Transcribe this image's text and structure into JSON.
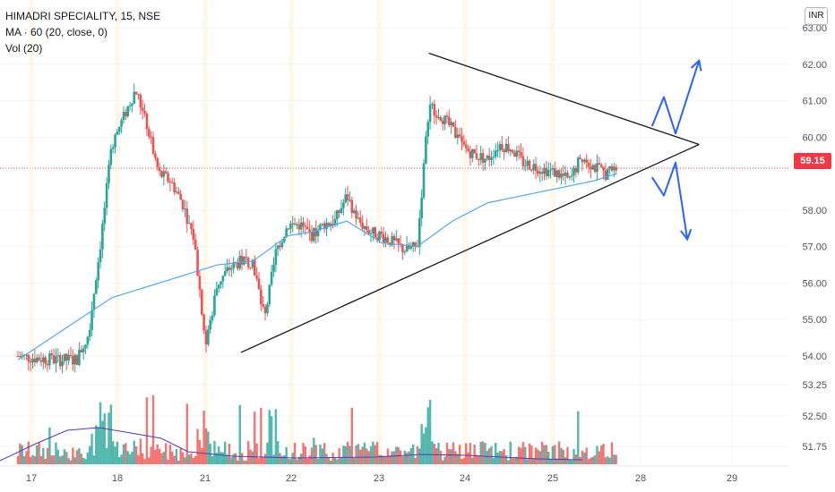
{
  "legend": {
    "symbol": "HIMADRI SPECIALITY, 15, NSE",
    "ma": "MA · 60 (20, close, 0)",
    "vol": "Vol (20)"
  },
  "currency": "INR",
  "last_price": "59.15",
  "colors": {
    "up": "#26a69a",
    "down": "#ef5350",
    "ma": "#4fa9e8",
    "vol_ma": "#5b35b5",
    "trendline": "#131722",
    "arrow": "#2962ff",
    "last_price": "#f23645"
  },
  "chart_data": {
    "type": "candlestick",
    "x_ticks": [
      "17",
      "18",
      "21",
      "22",
      "23",
      "24",
      "25",
      "28",
      "29"
    ],
    "y_ticks": [
      "63.00",
      "62.00",
      "61.00",
      "60.00",
      "58.00",
      "57.00",
      "56.00",
      "55.00",
      "54.00",
      "53.25",
      "52.50",
      "51.75"
    ],
    "last_price": 59.15,
    "price_path": [
      [
        0,
        54.0
      ],
      [
        3,
        53.9
      ],
      [
        5,
        53.9
      ],
      [
        6,
        54.6
      ],
      [
        7,
        57.0
      ],
      [
        8,
        59.8
      ],
      [
        10,
        61.3
      ],
      [
        11,
        60.3
      ],
      [
        12,
        59.0
      ],
      [
        13,
        58.8
      ],
      [
        14,
        58.2
      ],
      [
        15,
        57.2
      ],
      [
        16,
        54.3
      ],
      [
        17,
        56.0
      ],
      [
        18,
        56.4
      ],
      [
        19,
        56.6
      ],
      [
        20,
        56.6
      ],
      [
        21,
        55.0
      ],
      [
        22,
        56.9
      ],
      [
        23,
        57.6
      ],
      [
        24,
        57.6
      ],
      [
        25,
        57.3
      ],
      [
        26,
        57.6
      ],
      [
        27,
        57.7
      ],
      [
        28,
        58.4
      ],
      [
        29,
        57.7
      ],
      [
        30,
        57.4
      ],
      [
        31,
        57.3
      ],
      [
        32,
        57.1
      ],
      [
        33,
        56.9
      ],
      [
        34,
        57.0
      ],
      [
        35,
        60.9
      ],
      [
        36,
        60.6
      ],
      [
        37,
        60.2
      ],
      [
        38,
        59.7
      ],
      [
        39,
        59.5
      ],
      [
        40,
        59.4
      ],
      [
        41,
        59.8
      ],
      [
        42,
        59.7
      ],
      [
        43,
        59.3
      ],
      [
        44,
        59.2
      ],
      [
        45,
        59.1
      ],
      [
        46,
        59.0
      ],
      [
        47,
        58.8
      ],
      [
        48,
        59.5
      ],
      [
        49,
        59.2
      ],
      [
        50,
        59.0
      ],
      [
        51,
        59.15
      ]
    ],
    "moving_average": [
      [
        0,
        53.9
      ],
      [
        8,
        55.6
      ],
      [
        14,
        56.2
      ],
      [
        17,
        56.5
      ],
      [
        20,
        56.6
      ],
      [
        23,
        57.3
      ],
      [
        25,
        57.4
      ],
      [
        28,
        57.7
      ],
      [
        31,
        57.1
      ],
      [
        34,
        57.0
      ],
      [
        37,
        57.7
      ],
      [
        40,
        58.2
      ],
      [
        43,
        58.4
      ],
      [
        46,
        58.6
      ],
      [
        49,
        58.8
      ],
      [
        51,
        59.0
      ]
    ],
    "trendlines": [
      {
        "name": "upper",
        "from": [
          35,
          62.3
        ],
        "to": [
          58,
          59.8
        ]
      },
      {
        "name": "lower",
        "from": [
          19,
          54.1
        ],
        "to": [
          58,
          59.8
        ]
      }
    ],
    "projection_arrows": [
      {
        "direction": "up",
        "path": [
          [
            54,
            60.3
          ],
          [
            55,
            61.1
          ],
          [
            56,
            60.1
          ],
          [
            58,
            62.1
          ]
        ]
      },
      {
        "direction": "down",
        "path": [
          [
            54,
            58.9
          ],
          [
            55,
            58.4
          ],
          [
            56,
            59.3
          ],
          [
            57,
            57.2
          ]
        ]
      }
    ]
  }
}
